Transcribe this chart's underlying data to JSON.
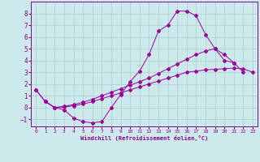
{
  "xlabel": "Windchill (Refroidissement éolien,°C)",
  "background_color": "#cce9ec",
  "grid_color": "#aacccc",
  "line_color": "#990099",
  "spine_color": "#880088",
  "xlim": [
    -0.5,
    23.5
  ],
  "ylim": [
    -1.6,
    9.0
  ],
  "xticks": [
    0,
    1,
    2,
    3,
    4,
    5,
    6,
    7,
    8,
    9,
    10,
    11,
    12,
    13,
    14,
    15,
    16,
    17,
    18,
    19,
    20,
    21,
    22,
    23
  ],
  "yticks": [
    -1,
    0,
    1,
    2,
    3,
    4,
    5,
    6,
    7,
    8
  ],
  "line1_x": [
    1,
    2,
    3,
    4,
    5,
    6,
    7,
    8,
    9,
    10,
    11,
    12,
    13,
    14,
    15,
    16,
    17,
    18,
    19,
    20,
    21
  ],
  "line1_y": [
    0.5,
    0.0,
    -0.2,
    -0.9,
    -1.2,
    -1.3,
    -1.2,
    0.0,
    1.1,
    2.2,
    3.1,
    4.5,
    6.5,
    7.0,
    8.2,
    8.2,
    7.8,
    6.2,
    5.0,
    4.0,
    3.8
  ],
  "line2_x": [
    0,
    1,
    2,
    3,
    4,
    5,
    6,
    7,
    8,
    9,
    10,
    11,
    12,
    13,
    14,
    15,
    16,
    17,
    18,
    19,
    20,
    21,
    22,
    23
  ],
  "line2_y": [
    1.5,
    0.5,
    0.0,
    0.05,
    0.15,
    0.3,
    0.5,
    0.75,
    1.0,
    1.25,
    1.5,
    1.75,
    2.0,
    2.25,
    2.5,
    2.75,
    3.0,
    3.1,
    3.2,
    3.25,
    3.3,
    3.35,
    3.3,
    3.0
  ],
  "line3_x": [
    0,
    1,
    2,
    3,
    4,
    5,
    6,
    7,
    8,
    9,
    10,
    11,
    12,
    13,
    14,
    15,
    16,
    17,
    18,
    19,
    20,
    21,
    22,
    23
  ],
  "line3_y": [
    1.5,
    0.5,
    0.0,
    0.1,
    0.25,
    0.45,
    0.7,
    1.0,
    1.3,
    1.6,
    1.9,
    2.2,
    2.5,
    2.9,
    3.3,
    3.7,
    4.1,
    4.5,
    4.8,
    5.0,
    4.5,
    3.8,
    3.0,
    null
  ]
}
